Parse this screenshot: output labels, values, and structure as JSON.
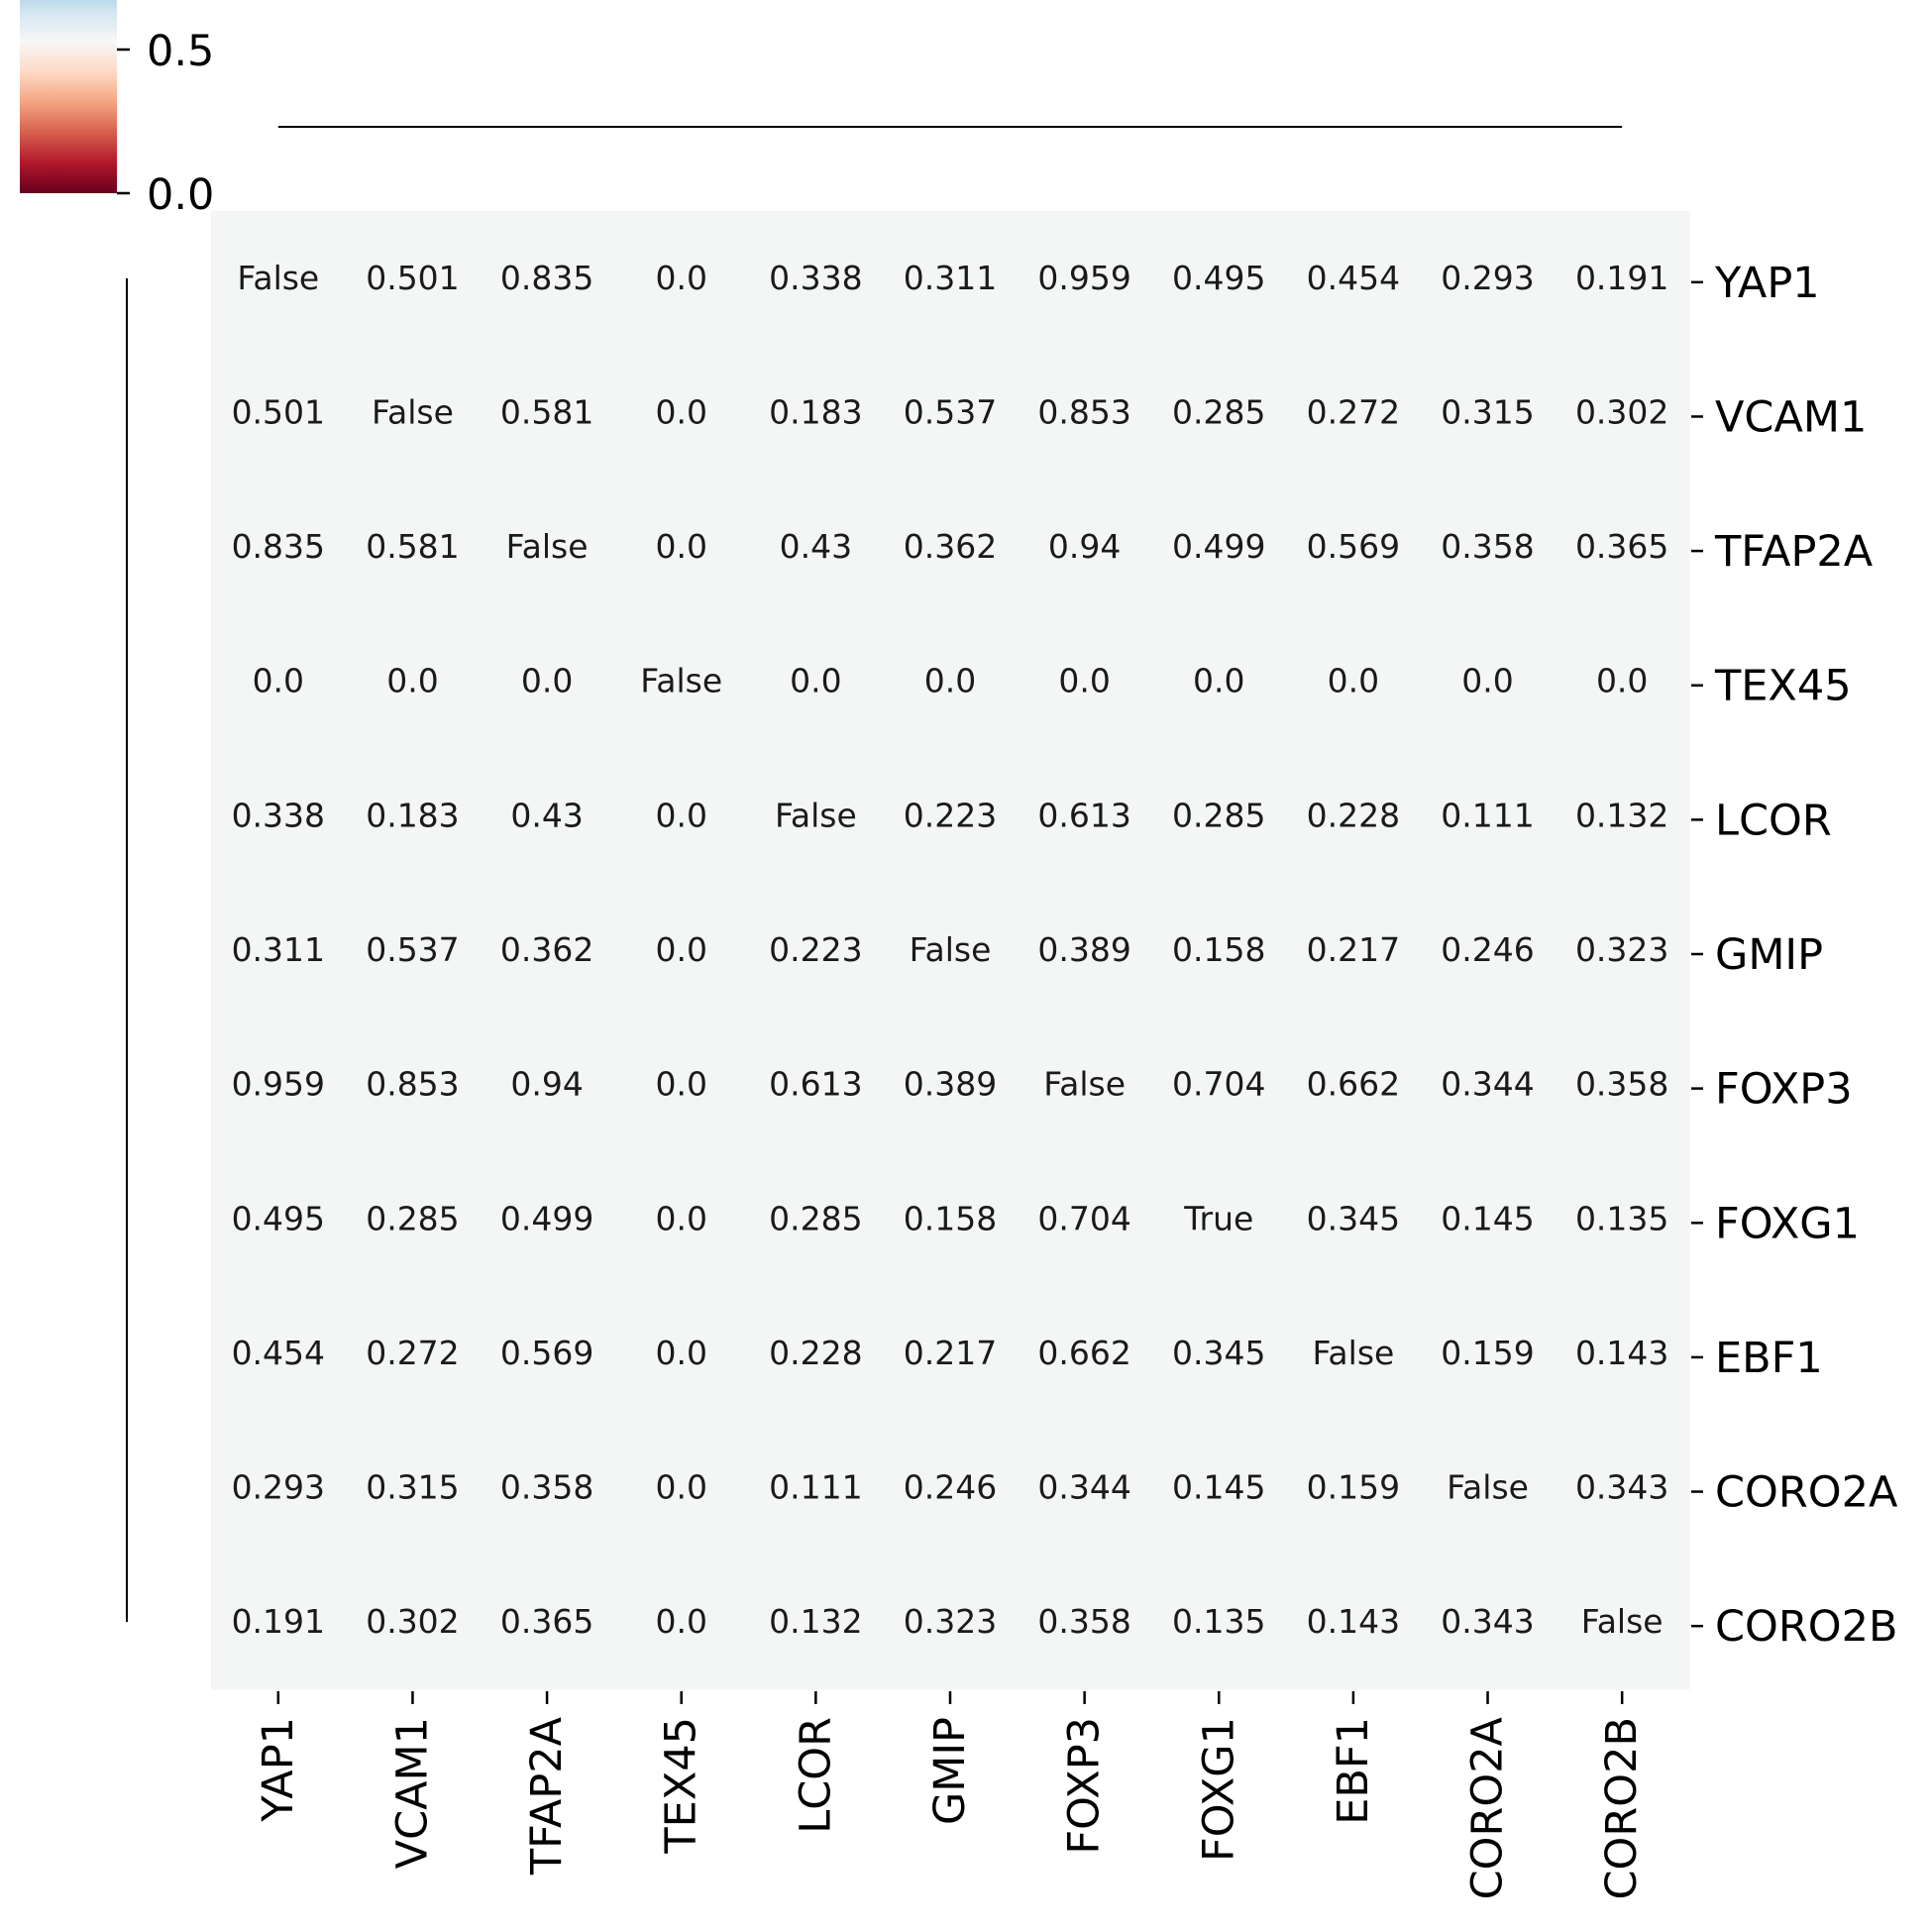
{
  "chart_data": {
    "type": "heatmap",
    "title": "",
    "xlabel": "",
    "ylabel": "",
    "colormap": "RdBu",
    "cell_color": "#f4f6f6",
    "rows": [
      "YAP1",
      "VCAM1",
      "TFAP2A",
      "TEX45",
      "LCOR",
      "GMIP",
      "FOXP3",
      "FOXG1",
      "EBF1",
      "CORO2A",
      "CORO2B"
    ],
    "columns": [
      "YAP1",
      "VCAM1",
      "TFAP2A",
      "TEX45",
      "LCOR",
      "GMIP",
      "FOXP3",
      "FOXG1",
      "EBF1",
      "CORO2A",
      "CORO2B"
    ],
    "annotations": [
      [
        "False",
        "0.501",
        "0.835",
        "0.0",
        "0.338",
        "0.311",
        "0.959",
        "0.495",
        "0.454",
        "0.293",
        "0.191"
      ],
      [
        "0.501",
        "False",
        "0.581",
        "0.0",
        "0.183",
        "0.537",
        "0.853",
        "0.285",
        "0.272",
        "0.315",
        "0.302"
      ],
      [
        "0.835",
        "0.581",
        "False",
        "0.0",
        "0.43",
        "0.362",
        "0.94",
        "0.499",
        "0.569",
        "0.358",
        "0.365"
      ],
      [
        "0.0",
        "0.0",
        "0.0",
        "False",
        "0.0",
        "0.0",
        "0.0",
        "0.0",
        "0.0",
        "0.0",
        "0.0"
      ],
      [
        "0.338",
        "0.183",
        "0.43",
        "0.0",
        "False",
        "0.223",
        "0.613",
        "0.285",
        "0.228",
        "0.111",
        "0.132"
      ],
      [
        "0.311",
        "0.537",
        "0.362",
        "0.0",
        "0.223",
        "False",
        "0.389",
        "0.158",
        "0.217",
        "0.246",
        "0.323"
      ],
      [
        "0.959",
        "0.853",
        "0.94",
        "0.0",
        "0.613",
        "0.389",
        "False",
        "0.704",
        "0.662",
        "0.344",
        "0.358"
      ],
      [
        "0.495",
        "0.285",
        "0.499",
        "0.0",
        "0.285",
        "0.158",
        "0.704",
        "True",
        "0.345",
        "0.145",
        "0.135"
      ],
      [
        "0.454",
        "0.272",
        "0.569",
        "0.0",
        "0.228",
        "0.217",
        "0.662",
        "0.345",
        "False",
        "0.159",
        "0.143"
      ],
      [
        "0.293",
        "0.315",
        "0.358",
        "0.0",
        "0.111",
        "0.246",
        "0.344",
        "0.145",
        "0.159",
        "False",
        "0.343"
      ],
      [
        "0.191",
        "0.302",
        "0.365",
        "0.0",
        "0.132",
        "0.323",
        "0.358",
        "0.135",
        "0.143",
        "0.343",
        "False"
      ]
    ],
    "colorbar": {
      "ticks": [
        "0.0",
        "0.5"
      ],
      "colors": [
        "#67001f",
        "#b2182b",
        "#d6604d",
        "#f4a582",
        "#fddbc7",
        "#f7f7f7",
        "#d1e5f0",
        "#92c5de"
      ]
    },
    "row_dendrogram": "left",
    "col_dendrogram": "top",
    "grid": false,
    "legend": "none"
  }
}
